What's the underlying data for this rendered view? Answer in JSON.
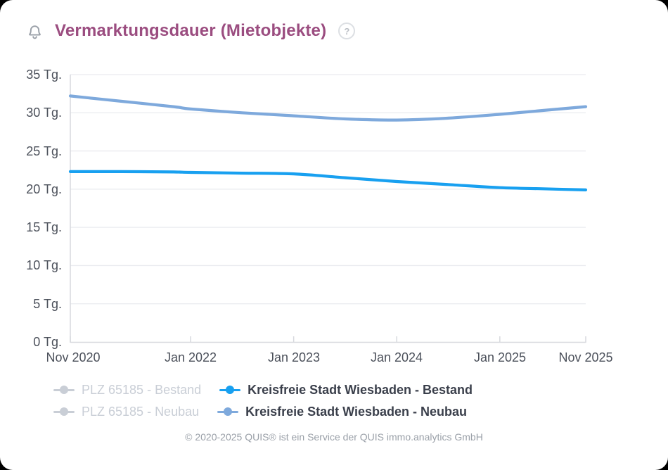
{
  "header": {
    "title": "Vermarktungsdauer (Mietobjekte)",
    "help_glyph": "?"
  },
  "chart_data": {
    "type": "line",
    "title": "Vermarktungsdauer (Mietobjekte)",
    "y_unit": "Tg.",
    "ylim": [
      0,
      35
    ],
    "y_tick_step": 5,
    "grid": true,
    "legend_position": "bottom",
    "y_tick_labels": [
      "35 Tg.",
      "30 Tg.",
      "25 Tg.",
      "20 Tg.",
      "15 Tg.",
      "10 Tg.",
      "5 Tg.",
      "0 Tg."
    ],
    "x_tick_labels": [
      "Nov 2020",
      "Jan 2022",
      "Jan 2023",
      "Jan 2024",
      "Jan 2025",
      "Nov 2025"
    ],
    "x_tick_months": [
      0,
      14,
      26,
      38,
      50,
      60
    ],
    "x_range_months": [
      0,
      60
    ],
    "series": [
      {
        "name": "PLZ 65185 - Bestand",
        "visible": false,
        "color": "#c9ced6",
        "months": [],
        "values": []
      },
      {
        "name": "Kreisfreie Stadt Wiesbaden - Bestand",
        "visible": true,
        "color": "#18a0f0",
        "months": [
          0,
          6,
          12,
          14,
          20,
          26,
          32,
          38,
          44,
          50,
          55,
          60
        ],
        "values": [
          22.3,
          22.3,
          22.25,
          22.2,
          22.1,
          22.0,
          21.5,
          21.0,
          20.6,
          20.2,
          20.05,
          19.9
        ]
      },
      {
        "name": "PLZ 65185 - Neubau",
        "visible": false,
        "color": "#c9ced6",
        "months": [],
        "values": []
      },
      {
        "name": "Kreisfreie Stadt Wiesbaden - Neubau",
        "visible": true,
        "color": "#7ea9dc",
        "months": [
          0,
          6,
          12,
          14,
          20,
          26,
          32,
          38,
          44,
          50,
          55,
          60
        ],
        "values": [
          32.2,
          31.5,
          30.8,
          30.5,
          30.0,
          29.6,
          29.2,
          29.05,
          29.3,
          29.8,
          30.3,
          30.8
        ]
      }
    ]
  },
  "legend": {
    "items": [
      {
        "label": "PLZ 65185 - Bestand",
        "color": "#c9ced6",
        "active": false
      },
      {
        "label": "Kreisfreie Stadt Wiesbaden - Bestand",
        "color": "#18a0f0",
        "active": true
      },
      {
        "label": "PLZ 65185 - Neubau",
        "color": "#c9ced6",
        "active": false
      },
      {
        "label": "Kreisfreie Stadt Wiesbaden - Neubau",
        "color": "#7ea9dc",
        "active": true
      }
    ]
  },
  "footer": {
    "copyright": "© 2020-2025 QUIS® ist ein Service der QUIS immo.analytics GmbH"
  },
  "colors": {
    "title": "#9b4d80",
    "axis_text": "#4b505a",
    "grid_line": "#eaebef",
    "axis_line": "#d7d9de",
    "legend_text": "#3a3f4b",
    "legend_disabled": "#c9ced6",
    "footer_text": "#9aa0a8",
    "icon_gray": "#9aa0a8"
  }
}
